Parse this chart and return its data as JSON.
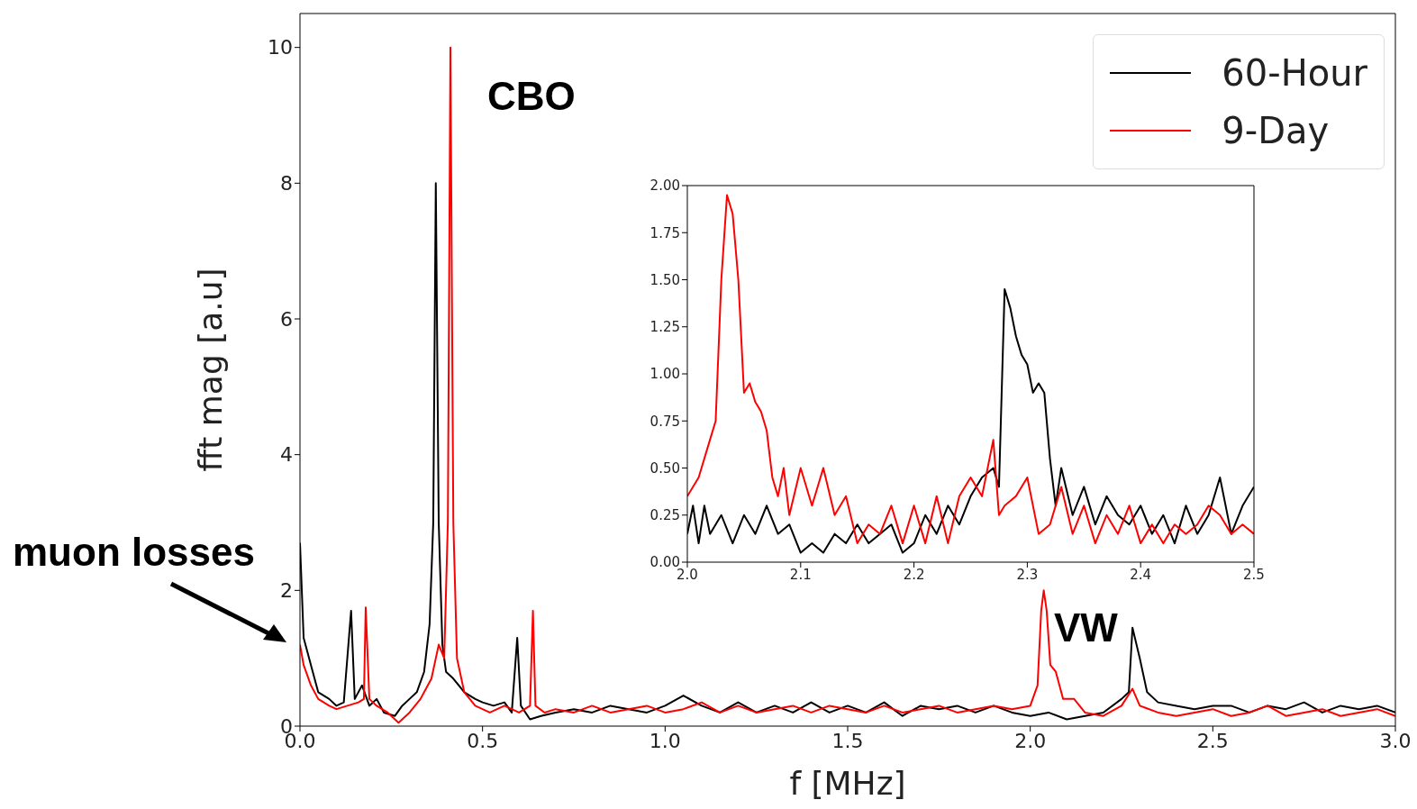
{
  "chart_data": [
    {
      "type": "line",
      "xlabel": "f [MHz]",
      "ylabel": "fft mag [a.u]",
      "legend": "top right",
      "line_style": "solid",
      "xlim": [
        0,
        3
      ],
      "ylim": [
        0,
        10.5
      ],
      "xticks": [
        {
          "value": 0,
          "label": "0.0"
        },
        {
          "value": 0.5,
          "label": "0.5"
        },
        {
          "value": 1,
          "label": "1.0"
        },
        {
          "value": 1.5,
          "label": "1.5"
        },
        {
          "value": 2,
          "label": "2.0"
        },
        {
          "value": 2.5,
          "label": "2.5"
        },
        {
          "value": 3,
          "label": "3.0"
        }
      ],
      "yticks": [
        0,
        2,
        4,
        6,
        8,
        10
      ],
      "annotations": [
        "CBO",
        "VW",
        "muon losses"
      ],
      "series": [
        {
          "name": "60-Hour",
          "color": "#000000",
          "x": [
            0,
            0.01,
            0.03,
            0.05,
            0.08,
            0.1,
            0.12,
            0.14,
            0.15,
            0.17,
            0.19,
            0.21,
            0.23,
            0.26,
            0.28,
            0.3,
            0.32,
            0.34,
            0.355,
            0.365,
            0.372,
            0.38,
            0.39,
            0.4,
            0.42,
            0.45,
            0.48,
            0.5,
            0.53,
            0.56,
            0.58,
            0.595,
            0.605,
            0.63,
            0.66,
            0.7,
            0.75,
            0.8,
            0.85,
            0.9,
            0.95,
            1,
            1.05,
            1.1,
            1.15,
            1.2,
            1.25,
            1.3,
            1.35,
            1.4,
            1.45,
            1.5,
            1.55,
            1.6,
            1.65,
            1.7,
            1.75,
            1.8,
            1.85,
            1.9,
            1.95,
            2,
            2.05,
            2.1,
            2.15,
            2.2,
            2.25,
            2.27,
            2.28,
            2.3,
            2.32,
            2.35,
            2.4,
            2.45,
            2.5,
            2.55,
            2.6,
            2.65,
            2.7,
            2.75,
            2.8,
            2.85,
            2.9,
            2.95,
            3
          ],
          "values": [
            2.7,
            1.3,
            0.9,
            0.5,
            0.4,
            0.3,
            0.35,
            1.7,
            0.4,
            0.6,
            0.3,
            0.4,
            0.2,
            0.15,
            0.3,
            0.4,
            0.5,
            0.8,
            1.5,
            3,
            8,
            3,
            1.2,
            0.8,
            0.7,
            0.5,
            0.4,
            0.35,
            0.3,
            0.35,
            0.2,
            1.3,
            0.3,
            0.1,
            0.15,
            0.2,
            0.25,
            0.2,
            0.3,
            0.25,
            0.2,
            0.3,
            0.45,
            0.3,
            0.2,
            0.35,
            0.2,
            0.3,
            0.2,
            0.35,
            0.2,
            0.3,
            0.2,
            0.35,
            0.15,
            0.3,
            0.25,
            0.3,
            0.2,
            0.3,
            0.2,
            0.15,
            0.2,
            0.1,
            0.15,
            0.2,
            0.4,
            0.5,
            1.45,
            1,
            0.5,
            0.35,
            0.3,
            0.25,
            0.3,
            0.3,
            0.2,
            0.3,
            0.25,
            0.35,
            0.2,
            0.3,
            0.25,
            0.3,
            0.2
          ]
        },
        {
          "name": "9-Day",
          "color": "#ff0000",
          "x": [
            0,
            0.01,
            0.03,
            0.05,
            0.08,
            0.1,
            0.13,
            0.16,
            0.175,
            0.18,
            0.19,
            0.21,
            0.24,
            0.27,
            0.3,
            0.33,
            0.36,
            0.38,
            0.395,
            0.405,
            0.412,
            0.42,
            0.43,
            0.45,
            0.48,
            0.52,
            0.56,
            0.6,
            0.63,
            0.638,
            0.645,
            0.67,
            0.7,
            0.75,
            0.8,
            0.85,
            0.9,
            0.95,
            1,
            1.05,
            1.1,
            1.15,
            1.2,
            1.25,
            1.3,
            1.35,
            1.4,
            1.45,
            1.5,
            1.55,
            1.6,
            1.65,
            1.7,
            1.75,
            1.8,
            1.85,
            1.9,
            1.95,
            2,
            2.02,
            2.03,
            2.037,
            2.045,
            2.055,
            2.07,
            2.09,
            2.12,
            2.15,
            2.2,
            2.25,
            2.28,
            2.3,
            2.35,
            2.4,
            2.45,
            2.5,
            2.55,
            2.6,
            2.65,
            2.7,
            2.75,
            2.8,
            2.85,
            2.9,
            2.95,
            3
          ],
          "values": [
            1.2,
            0.9,
            0.6,
            0.4,
            0.3,
            0.25,
            0.3,
            0.35,
            0.4,
            1.75,
            0.4,
            0.3,
            0.2,
            0.05,
            0.2,
            0.4,
            0.7,
            1.2,
            1,
            3,
            10,
            3,
            1,
            0.5,
            0.3,
            0.2,
            0.3,
            0.2,
            0.3,
            1.7,
            0.3,
            0.2,
            0.25,
            0.2,
            0.3,
            0.2,
            0.25,
            0.3,
            0.2,
            0.25,
            0.35,
            0.2,
            0.3,
            0.2,
            0.25,
            0.3,
            0.2,
            0.3,
            0.25,
            0.2,
            0.3,
            0.2,
            0.25,
            0.3,
            0.2,
            0.25,
            0.3,
            0.25,
            0.3,
            0.6,
            1.7,
            2,
            1.7,
            0.9,
            0.8,
            0.4,
            0.4,
            0.2,
            0.15,
            0.3,
            0.55,
            0.3,
            0.2,
            0.15,
            0.2,
            0.25,
            0.15,
            0.2,
            0.3,
            0.15,
            0.2,
            0.25,
            0.15,
            0.2,
            0.25,
            0.15
          ]
        }
      ]
    },
    {
      "type": "line",
      "line_style": "solid",
      "xlim": [
        2,
        2.5
      ],
      "ylim": [
        0,
        2
      ],
      "xticks": [
        {
          "value": 2,
          "label": "2.0"
        },
        {
          "value": 2.1,
          "label": "2.1"
        },
        {
          "value": 2.2,
          "label": "2.2"
        },
        {
          "value": 2.3,
          "label": "2.3"
        },
        {
          "value": 2.4,
          "label": "2.4"
        },
        {
          "value": 2.5,
          "label": "2.5"
        }
      ],
      "yticks": [
        {
          "value": 0,
          "label": "0.00"
        },
        {
          "value": 0.25,
          "label": "0.25"
        },
        {
          "value": 0.5,
          "label": "0.50"
        },
        {
          "value": 0.75,
          "label": "0.75"
        },
        {
          "value": 1,
          "label": "1.00"
        },
        {
          "value": 1.25,
          "label": "1.25"
        },
        {
          "value": 1.5,
          "label": "1.50"
        },
        {
          "value": 1.75,
          "label": "1.75"
        },
        {
          "value": 2,
          "label": "2.00"
        }
      ],
      "series": [
        {
          "color": "#000000",
          "x": [
            2,
            2.005,
            2.01,
            2.015,
            2.02,
            2.03,
            2.04,
            2.05,
            2.06,
            2.07,
            2.08,
            2.09,
            2.1,
            2.11,
            2.12,
            2.13,
            2.14,
            2.15,
            2.16,
            2.17,
            2.18,
            2.19,
            2.2,
            2.21,
            2.22,
            2.23,
            2.24,
            2.25,
            2.26,
            2.27,
            2.275,
            2.28,
            2.285,
            2.29,
            2.295,
            2.3,
            2.305,
            2.31,
            2.315,
            2.32,
            2.325,
            2.33,
            2.34,
            2.35,
            2.36,
            2.37,
            2.38,
            2.39,
            2.4,
            2.41,
            2.42,
            2.43,
            2.44,
            2.45,
            2.46,
            2.47,
            2.48,
            2.49,
            2.5
          ],
          "values": [
            0.15,
            0.3,
            0.1,
            0.3,
            0.15,
            0.25,
            0.1,
            0.25,
            0.15,
            0.3,
            0.15,
            0.2,
            0.05,
            0.1,
            0.05,
            0.15,
            0.1,
            0.2,
            0.1,
            0.15,
            0.2,
            0.05,
            0.1,
            0.25,
            0.15,
            0.3,
            0.2,
            0.35,
            0.45,
            0.5,
            0.4,
            1.45,
            1.35,
            1.2,
            1.1,
            1.05,
            0.9,
            0.95,
            0.9,
            0.55,
            0.3,
            0.5,
            0.25,
            0.4,
            0.2,
            0.35,
            0.25,
            0.2,
            0.3,
            0.15,
            0.25,
            0.1,
            0.3,
            0.15,
            0.25,
            0.45,
            0.15,
            0.3,
            0.4
          ]
        },
        {
          "color": "#ff0000",
          "x": [
            2,
            2.01,
            2.02,
            2.025,
            2.03,
            2.035,
            2.04,
            2.045,
            2.05,
            2.055,
            2.06,
            2.065,
            2.07,
            2.075,
            2.08,
            2.085,
            2.09,
            2.1,
            2.11,
            2.12,
            2.13,
            2.14,
            2.15,
            2.16,
            2.17,
            2.18,
            2.19,
            2.2,
            2.21,
            2.22,
            2.23,
            2.24,
            2.25,
            2.26,
            2.27,
            2.275,
            2.28,
            2.29,
            2.3,
            2.31,
            2.32,
            2.33,
            2.34,
            2.35,
            2.36,
            2.37,
            2.38,
            2.39,
            2.4,
            2.41,
            2.42,
            2.43,
            2.44,
            2.45,
            2.46,
            2.47,
            2.48,
            2.49,
            2.5
          ],
          "values": [
            0.35,
            0.45,
            0.65,
            0.75,
            1.5,
            1.95,
            1.85,
            1.5,
            0.9,
            0.95,
            0.85,
            0.8,
            0.7,
            0.45,
            0.35,
            0.5,
            0.25,
            0.5,
            0.3,
            0.5,
            0.25,
            0.35,
            0.1,
            0.2,
            0.15,
            0.3,
            0.1,
            0.3,
            0.1,
            0.35,
            0.1,
            0.35,
            0.45,
            0.35,
            0.65,
            0.25,
            0.3,
            0.35,
            0.45,
            0.15,
            0.2,
            0.4,
            0.15,
            0.3,
            0.1,
            0.25,
            0.15,
            0.3,
            0.1,
            0.2,
            0.1,
            0.2,
            0.15,
            0.2,
            0.3,
            0.25,
            0.15,
            0.2,
            0.15
          ]
        }
      ]
    }
  ]
}
